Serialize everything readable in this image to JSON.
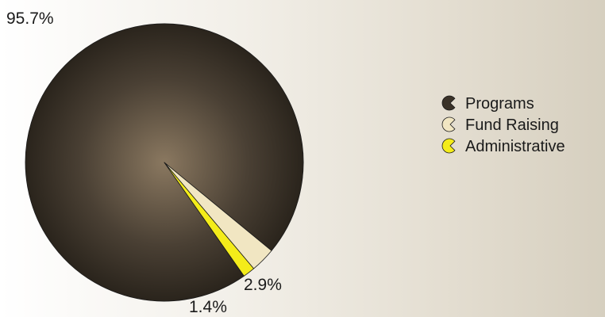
{
  "chart_data": {
    "type": "pie",
    "title": "",
    "slices": [
      {
        "label": "Programs",
        "value": 95.7,
        "value_label": "95.7%",
        "color": "#3a3228"
      },
      {
        "label": "Fund Raising",
        "value": 2.9,
        "value_label": "2.9%",
        "color": "#f1e6c2"
      },
      {
        "label": "Administrative",
        "value": 1.4,
        "value_label": "1.4%",
        "color": "#f4ec1a"
      }
    ],
    "legend_position": "right"
  }
}
